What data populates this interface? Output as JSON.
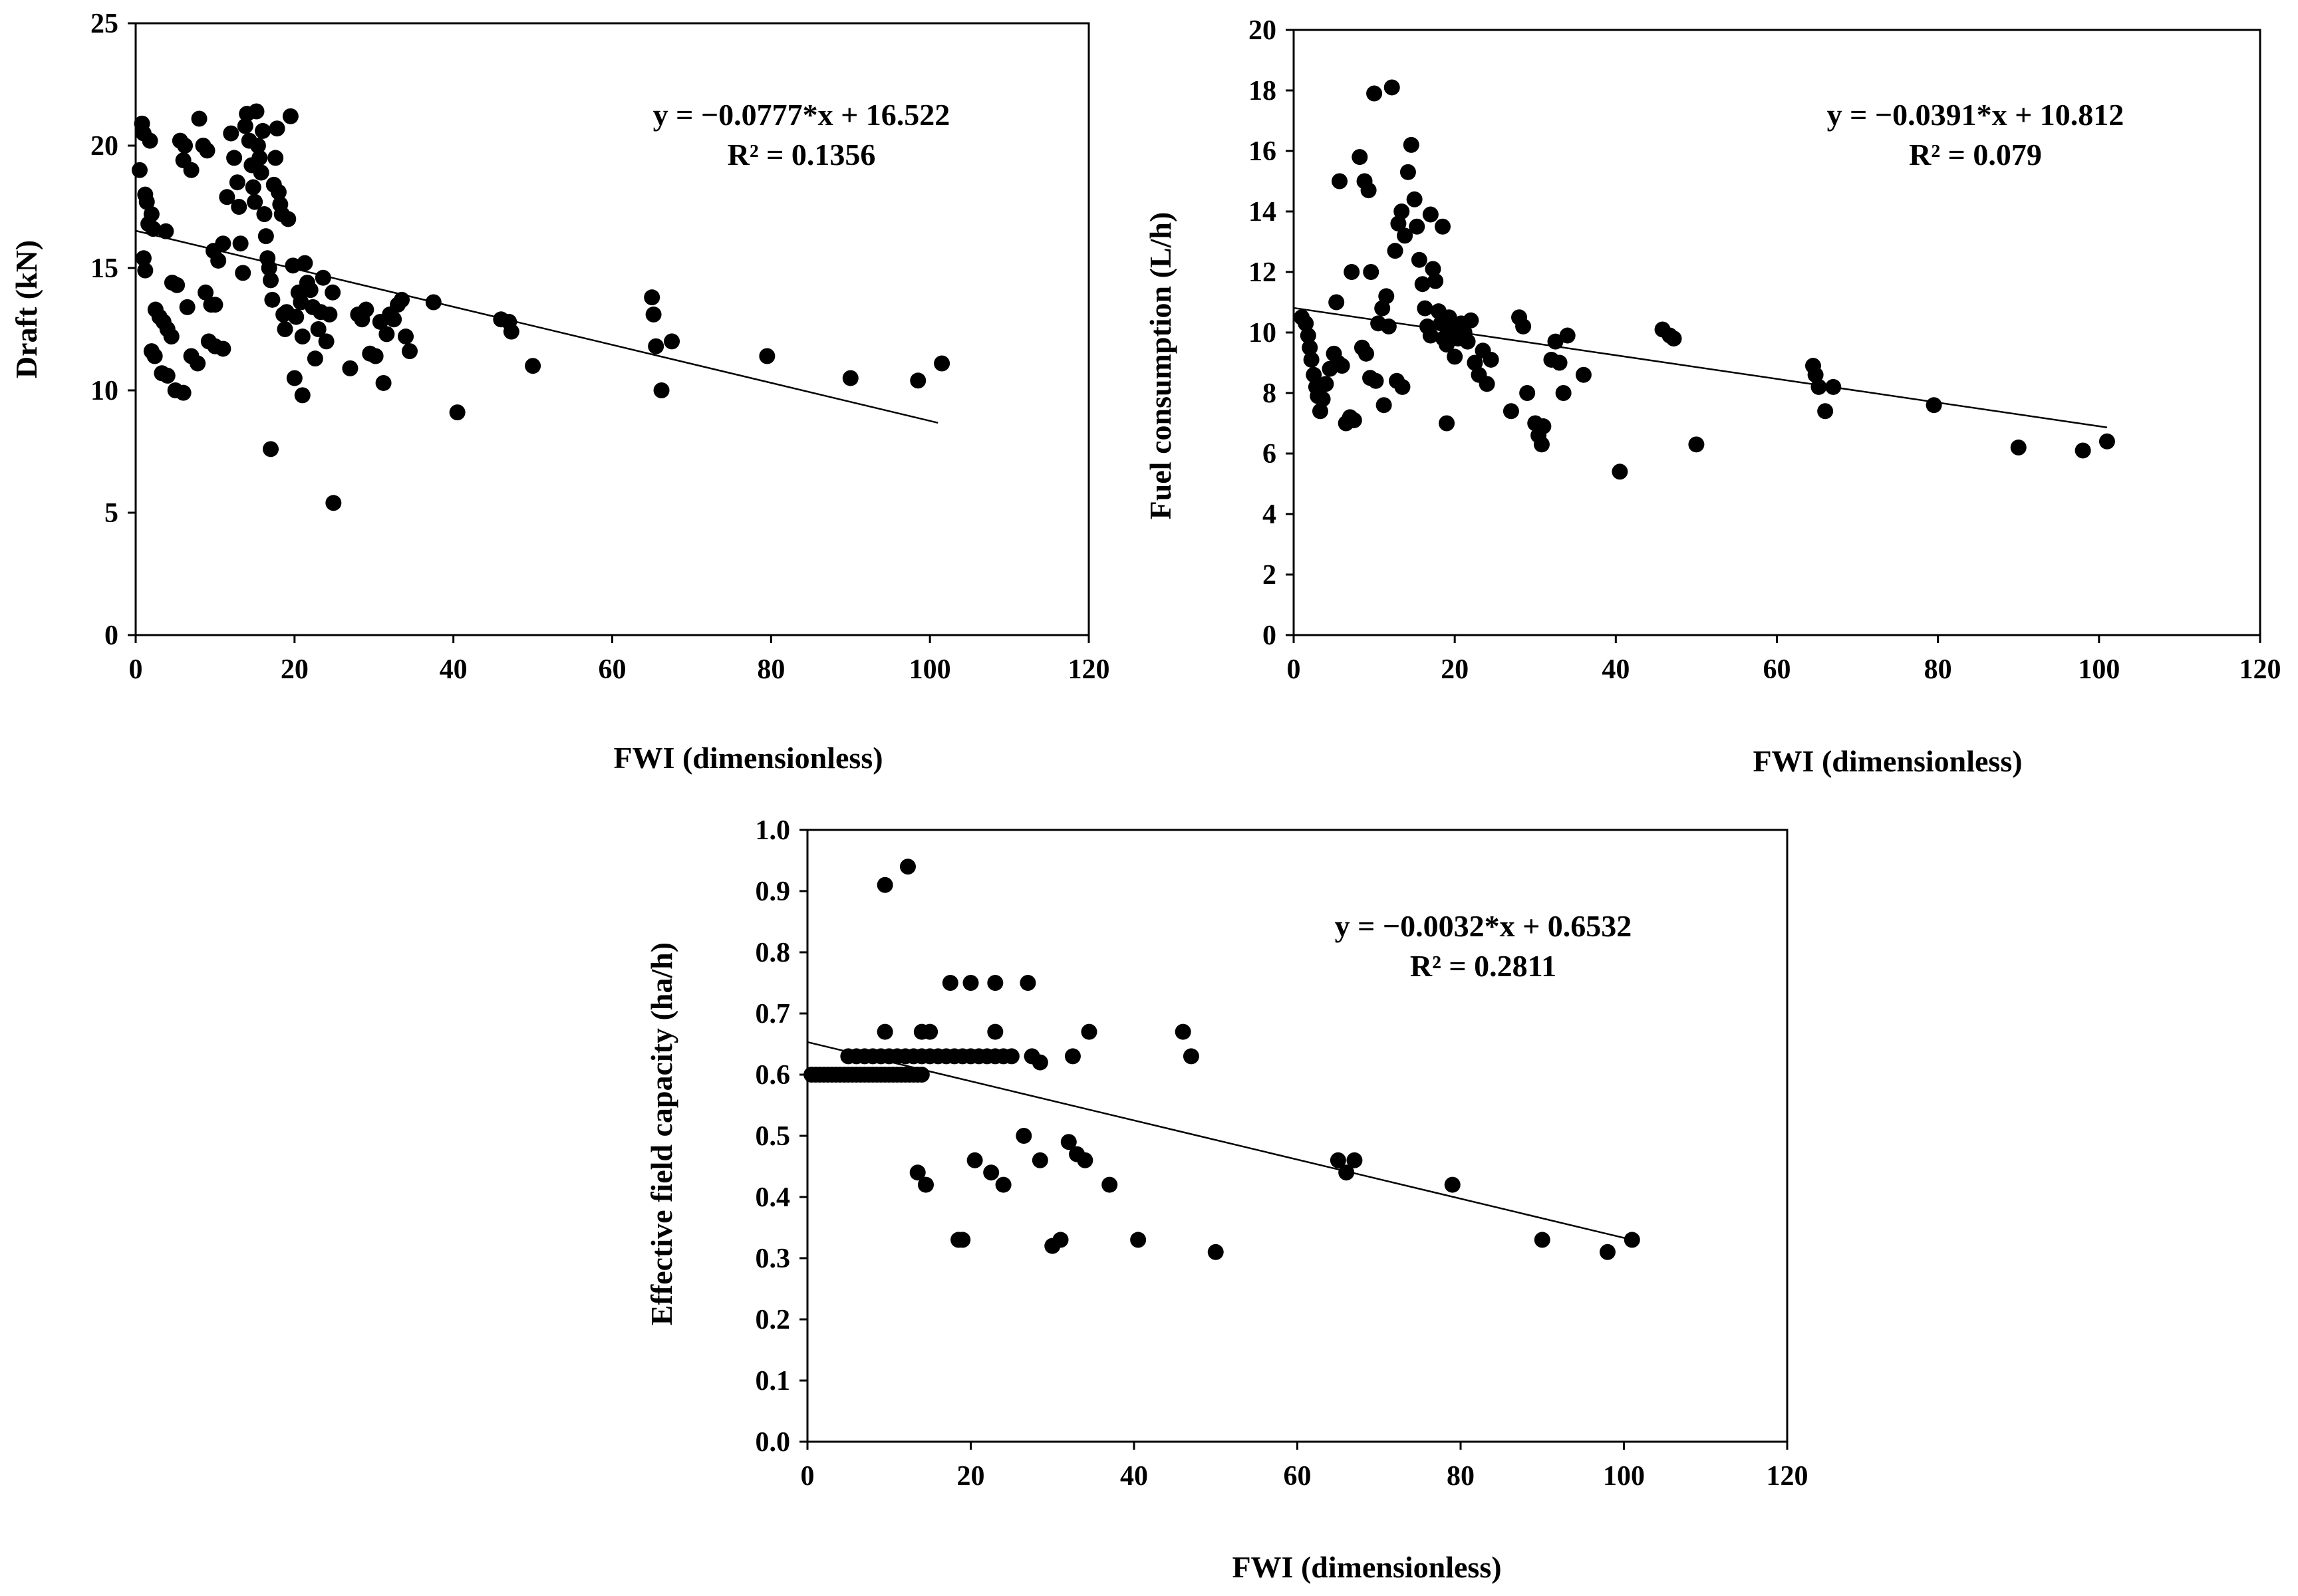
{
  "chart_data": [
    {
      "type": "scatter",
      "xlabel": "FWI (dimensionless)",
      "ylabel": "Draft (kN)",
      "xlim": [
        0,
        120
      ],
      "ylim": [
        0,
        25
      ],
      "xticks": [
        "0",
        "20",
        "40",
        "60",
        "80",
        "100",
        "120"
      ],
      "yticks": [
        "0",
        "5",
        "10",
        "15",
        "20",
        "25"
      ],
      "grid": false,
      "annotation": [
        "y = −0.0777*x + 16.522",
        "R² = 0.1356"
      ],
      "trendline": {
        "slope": -0.0777,
        "intercept": 16.522,
        "x_range": [
          0,
          101
        ]
      },
      "points": [
        [
          0.5,
          19.0
        ],
        [
          0.8,
          20.9
        ],
        [
          1.0,
          20.5
        ],
        [
          1.2,
          18.0
        ],
        [
          1.4,
          17.7
        ],
        [
          1.6,
          16.8
        ],
        [
          1.8,
          20.2
        ],
        [
          2.0,
          17.2
        ],
        [
          2.2,
          16.6
        ],
        [
          1.0,
          15.4
        ],
        [
          1.2,
          14.9
        ],
        [
          2.5,
          13.3
        ],
        [
          3.0,
          13.0
        ],
        [
          3.5,
          12.8
        ],
        [
          4.0,
          12.5
        ],
        [
          4.5,
          12.2
        ],
        [
          2.0,
          11.6
        ],
        [
          2.4,
          11.4
        ],
        [
          3.3,
          10.7
        ],
        [
          4.0,
          10.6
        ],
        [
          5.0,
          10.0
        ],
        [
          6.0,
          9.9
        ],
        [
          3.8,
          16.5
        ],
        [
          4.6,
          14.4
        ],
        [
          5.2,
          14.3
        ],
        [
          5.6,
          20.2
        ],
        [
          6.2,
          20.0
        ],
        [
          6.0,
          19.4
        ],
        [
          7.0,
          19.0
        ],
        [
          6.5,
          13.4
        ],
        [
          7.0,
          11.4
        ],
        [
          7.8,
          11.1
        ],
        [
          8.0,
          21.1
        ],
        [
          8.5,
          20.0
        ],
        [
          9.0,
          19.8
        ],
        [
          8.8,
          14.0
        ],
        [
          9.5,
          13.5
        ],
        [
          10.0,
          13.5
        ],
        [
          9.2,
          12.0
        ],
        [
          10.0,
          11.8
        ],
        [
          11.0,
          11.7
        ],
        [
          9.8,
          15.7
        ],
        [
          10.4,
          15.3
        ],
        [
          11.0,
          16.0
        ],
        [
          11.5,
          17.9
        ],
        [
          12.0,
          20.5
        ],
        [
          12.4,
          19.5
        ],
        [
          12.8,
          18.5
        ],
        [
          13.0,
          17.5
        ],
        [
          13.2,
          16.0
        ],
        [
          13.5,
          14.8
        ],
        [
          13.8,
          20.8
        ],
        [
          14.0,
          21.3
        ],
        [
          14.3,
          20.2
        ],
        [
          14.6,
          19.2
        ],
        [
          14.8,
          18.3
        ],
        [
          15.0,
          17.7
        ],
        [
          15.2,
          21.4
        ],
        [
          15.4,
          20.0
        ],
        [
          15.6,
          19.5
        ],
        [
          15.8,
          18.9
        ],
        [
          16.0,
          20.6
        ],
        [
          16.2,
          17.2
        ],
        [
          16.4,
          16.3
        ],
        [
          16.6,
          15.4
        ],
        [
          16.8,
          15.0
        ],
        [
          17.0,
          14.5
        ],
        [
          17.2,
          13.7
        ],
        [
          17.4,
          18.4
        ],
        [
          17.6,
          19.5
        ],
        [
          17.8,
          20.7
        ],
        [
          18.0,
          18.1
        ],
        [
          18.2,
          17.6
        ],
        [
          18.4,
          17.2
        ],
        [
          18.6,
          13.1
        ],
        [
          18.8,
          12.5
        ],
        [
          19.0,
          13.2
        ],
        [
          19.2,
          17.0
        ],
        [
          19.5,
          21.2
        ],
        [
          19.8,
          15.1
        ],
        [
          20.2,
          13.0
        ],
        [
          20.5,
          14.0
        ],
        [
          20.8,
          13.6
        ],
        [
          21.0,
          12.2
        ],
        [
          21.3,
          15.2
        ],
        [
          21.6,
          14.4
        ],
        [
          22.0,
          14.1
        ],
        [
          22.3,
          13.4
        ],
        [
          22.6,
          11.3
        ],
        [
          23.0,
          12.5
        ],
        [
          23.3,
          13.2
        ],
        [
          23.6,
          14.6
        ],
        [
          24.0,
          12.0
        ],
        [
          24.4,
          13.1
        ],
        [
          24.8,
          14.0
        ],
        [
          20.0,
          10.5
        ],
        [
          21.0,
          9.8
        ],
        [
          17.0,
          7.6
        ],
        [
          24.9,
          5.4
        ],
        [
          27.0,
          10.9
        ],
        [
          28.0,
          13.1
        ],
        [
          28.5,
          12.9
        ],
        [
          29.0,
          13.3
        ],
        [
          29.5,
          11.5
        ],
        [
          30.2,
          11.4
        ],
        [
          30.8,
          12.8
        ],
        [
          31.2,
          10.3
        ],
        [
          31.6,
          12.3
        ],
        [
          32.0,
          13.1
        ],
        [
          32.5,
          12.9
        ],
        [
          33.0,
          13.5
        ],
        [
          33.5,
          13.7
        ],
        [
          34.0,
          12.2
        ],
        [
          34.5,
          11.6
        ],
        [
          37.5,
          13.6
        ],
        [
          40.5,
          9.1
        ],
        [
          46.0,
          12.9
        ],
        [
          47.0,
          12.8
        ],
        [
          47.3,
          12.4
        ],
        [
          50.0,
          11.0
        ],
        [
          65.0,
          13.8
        ],
        [
          65.2,
          13.1
        ],
        [
          65.5,
          11.8
        ],
        [
          66.2,
          10.0
        ],
        [
          67.5,
          12.0
        ],
        [
          79.5,
          11.4
        ],
        [
          90.0,
          10.5
        ],
        [
          98.5,
          10.4
        ],
        [
          101.5,
          11.1
        ]
      ]
    },
    {
      "type": "scatter",
      "xlabel": "FWI (dimensionless)",
      "ylabel": "Fuel consumption  (L/h)",
      "xlim": [
        0,
        120
      ],
      "ylim": [
        0,
        20
      ],
      "xticks": [
        "0",
        "20",
        "40",
        "60",
        "80",
        "100",
        "120"
      ],
      "yticks": [
        "0",
        "2",
        "4",
        "6",
        "8",
        "10",
        "12",
        "14",
        "16",
        "18",
        "20"
      ],
      "grid": false,
      "annotation": [
        "y = −0.0391*x + 10.812",
        "R² = 0.079"
      ],
      "trendline": {
        "slope": -0.0391,
        "intercept": 10.812,
        "x_range": [
          0,
          101
        ]
      },
      "points": [
        [
          1.0,
          10.5
        ],
        [
          1.5,
          10.3
        ],
        [
          1.8,
          9.9
        ],
        [
          2.0,
          9.5
        ],
        [
          2.2,
          9.1
        ],
        [
          2.5,
          8.6
        ],
        [
          2.8,
          8.2
        ],
        [
          3.0,
          7.9
        ],
        [
          3.3,
          7.4
        ],
        [
          3.6,
          7.8
        ],
        [
          4.0,
          8.3
        ],
        [
          4.5,
          8.8
        ],
        [
          5.0,
          9.3
        ],
        [
          5.5,
          9.0
        ],
        [
          6.0,
          8.9
        ],
        [
          6.5,
          7.0
        ],
        [
          7.0,
          7.2
        ],
        [
          7.5,
          7.1
        ],
        [
          5.3,
          11.0
        ],
        [
          5.7,
          15.0
        ],
        [
          7.2,
          12.0
        ],
        [
          8.2,
          15.8
        ],
        [
          8.8,
          15.0
        ],
        [
          9.3,
          14.7
        ],
        [
          9.6,
          12.0
        ],
        [
          10.0,
          17.9
        ],
        [
          10.5,
          10.3
        ],
        [
          11.0,
          10.8
        ],
        [
          11.5,
          11.2
        ],
        [
          11.8,
          10.2
        ],
        [
          12.2,
          18.1
        ],
        [
          12.6,
          12.7
        ],
        [
          13.0,
          13.6
        ],
        [
          13.4,
          14.0
        ],
        [
          13.8,
          13.2
        ],
        [
          14.2,
          15.3
        ],
        [
          14.6,
          16.2
        ],
        [
          15.0,
          14.4
        ],
        [
          15.3,
          13.5
        ],
        [
          15.6,
          12.4
        ],
        [
          16.0,
          11.6
        ],
        [
          16.3,
          10.8
        ],
        [
          16.6,
          10.2
        ],
        [
          17.0,
          9.9
        ],
        [
          17.3,
          12.1
        ],
        [
          17.6,
          11.7
        ],
        [
          18.0,
          10.7
        ],
        [
          18.3,
          10.3
        ],
        [
          18.6,
          9.8
        ],
        [
          19.0,
          9.6
        ],
        [
          19.3,
          10.5
        ],
        [
          19.6,
          10.1
        ],
        [
          20.0,
          9.2
        ],
        [
          20.4,
          9.8
        ],
        [
          20.8,
          10.3
        ],
        [
          21.2,
          10.0
        ],
        [
          21.6,
          9.7
        ],
        [
          22.0,
          10.4
        ],
        [
          22.5,
          9.0
        ],
        [
          23.0,
          8.6
        ],
        [
          23.5,
          9.4
        ],
        [
          24.0,
          8.3
        ],
        [
          24.5,
          9.1
        ],
        [
          19.0,
          7.0
        ],
        [
          18.5,
          13.5
        ],
        [
          17.0,
          13.9
        ],
        [
          12.8,
          8.4
        ],
        [
          13.5,
          8.2
        ],
        [
          11.2,
          7.6
        ],
        [
          9.5,
          8.5
        ],
        [
          10.2,
          8.4
        ],
        [
          8.5,
          9.5
        ],
        [
          9.0,
          9.3
        ],
        [
          27.0,
          7.4
        ],
        [
          28.0,
          10.5
        ],
        [
          28.5,
          10.2
        ],
        [
          29.0,
          8.0
        ],
        [
          30.0,
          7.0
        ],
        [
          30.4,
          6.6
        ],
        [
          30.8,
          6.3
        ],
        [
          31.0,
          6.9
        ],
        [
          32.0,
          9.1
        ],
        [
          32.5,
          9.7
        ],
        [
          33.0,
          9.0
        ],
        [
          33.5,
          8.0
        ],
        [
          34.0,
          9.9
        ],
        [
          36.0,
          8.6
        ],
        [
          40.5,
          5.4
        ],
        [
          45.8,
          10.1
        ],
        [
          46.7,
          9.9
        ],
        [
          47.2,
          9.8
        ],
        [
          50.0,
          6.3
        ],
        [
          64.5,
          8.9
        ],
        [
          64.8,
          8.6
        ],
        [
          65.2,
          8.2
        ],
        [
          66.0,
          7.4
        ],
        [
          67.0,
          8.2
        ],
        [
          79.5,
          7.6
        ],
        [
          90.0,
          6.2
        ],
        [
          98.0,
          6.1
        ],
        [
          101.0,
          6.4
        ]
      ]
    },
    {
      "type": "scatter",
      "xlabel": "FWI (dimensionless)",
      "ylabel": "Effective field capacity (ha/h)",
      "xlim": [
        0,
        120
      ],
      "ylim": [
        0,
        1.0
      ],
      "xticks": [
        "0",
        "20",
        "40",
        "60",
        "80",
        "100",
        "120"
      ],
      "yticks": [
        "0.0",
        "0.1",
        "0.2",
        "0.3",
        "0.4",
        "0.5",
        "0.6",
        "0.7",
        "0.8",
        "0.9",
        "1.0"
      ],
      "grid": false,
      "annotation": [
        "y = −0.0032*x + 0.6532",
        "R² = 0.2811"
      ],
      "trendline": {
        "slope": -0.0032,
        "intercept": 0.6532,
        "x_range": [
          0,
          101
        ]
      },
      "points": [
        [
          0.5,
          0.6
        ],
        [
          1.0,
          0.6
        ],
        [
          1.5,
          0.6
        ],
        [
          2.0,
          0.6
        ],
        [
          2.5,
          0.6
        ],
        [
          3.0,
          0.6
        ],
        [
          3.5,
          0.6
        ],
        [
          4.0,
          0.6
        ],
        [
          4.5,
          0.6
        ],
        [
          5.0,
          0.6
        ],
        [
          5.5,
          0.6
        ],
        [
          6.0,
          0.6
        ],
        [
          6.5,
          0.6
        ],
        [
          7.0,
          0.6
        ],
        [
          7.5,
          0.6
        ],
        [
          8.0,
          0.6
        ],
        [
          8.5,
          0.6
        ],
        [
          9.0,
          0.6
        ],
        [
          9.5,
          0.6
        ],
        [
          10.0,
          0.6
        ],
        [
          10.5,
          0.6
        ],
        [
          11.0,
          0.6
        ],
        [
          11.5,
          0.6
        ],
        [
          12.0,
          0.6
        ],
        [
          12.5,
          0.6
        ],
        [
          13.0,
          0.6
        ],
        [
          13.5,
          0.6
        ],
        [
          14.0,
          0.6
        ],
        [
          5.0,
          0.63
        ],
        [
          6.0,
          0.63
        ],
        [
          7.0,
          0.63
        ],
        [
          8.0,
          0.63
        ],
        [
          9.0,
          0.63
        ],
        [
          10.0,
          0.63
        ],
        [
          11.0,
          0.63
        ],
        [
          12.0,
          0.63
        ],
        [
          13.0,
          0.63
        ],
        [
          14.0,
          0.63
        ],
        [
          15.0,
          0.63
        ],
        [
          16.0,
          0.63
        ],
        [
          17.0,
          0.63
        ],
        [
          18.0,
          0.63
        ],
        [
          19.0,
          0.63
        ],
        [
          20.0,
          0.63
        ],
        [
          21.0,
          0.63
        ],
        [
          22.0,
          0.63
        ],
        [
          23.0,
          0.63
        ],
        [
          24.0,
          0.63
        ],
        [
          9.5,
          0.67
        ],
        [
          14.0,
          0.67
        ],
        [
          15.0,
          0.67
        ],
        [
          23.0,
          0.67
        ],
        [
          34.5,
          0.67
        ],
        [
          9.5,
          0.91
        ],
        [
          12.3,
          0.94
        ],
        [
          17.5,
          0.75
        ],
        [
          20.0,
          0.75
        ],
        [
          23.0,
          0.75
        ],
        [
          27.0,
          0.75
        ],
        [
          25.0,
          0.63
        ],
        [
          27.5,
          0.63
        ],
        [
          28.5,
          0.62
        ],
        [
          32.5,
          0.63
        ],
        [
          13.5,
          0.44
        ],
        [
          14.5,
          0.42
        ],
        [
          18.5,
          0.33
        ],
        [
          19.0,
          0.33
        ],
        [
          20.5,
          0.46
        ],
        [
          22.5,
          0.44
        ],
        [
          24.0,
          0.42
        ],
        [
          26.5,
          0.5
        ],
        [
          28.5,
          0.46
        ],
        [
          30.0,
          0.32
        ],
        [
          31.0,
          0.33
        ],
        [
          32.0,
          0.49
        ],
        [
          33.0,
          0.47
        ],
        [
          34.0,
          0.46
        ],
        [
          37.0,
          0.42
        ],
        [
          40.5,
          0.33
        ],
        [
          46.0,
          0.67
        ],
        [
          47.0,
          0.63
        ],
        [
          50.0,
          0.31
        ],
        [
          65.0,
          0.46
        ],
        [
          66.0,
          0.44
        ],
        [
          67.0,
          0.46
        ],
        [
          79.0,
          0.42
        ],
        [
          90.0,
          0.33
        ],
        [
          98.0,
          0.31
        ],
        [
          101.0,
          0.33
        ]
      ]
    }
  ]
}
